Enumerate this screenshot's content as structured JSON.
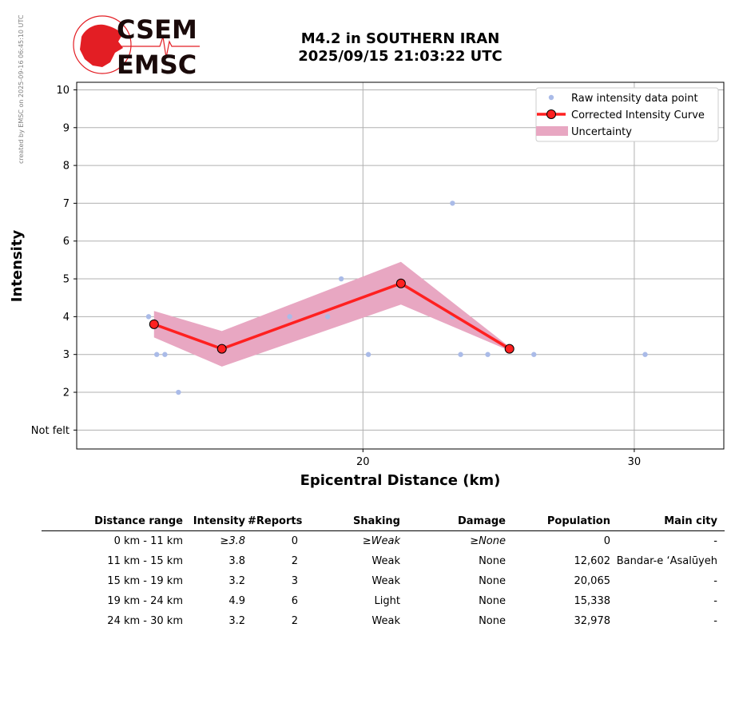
{
  "created_note": "created by EMSC on 2025-09-16 06:45:10 UTC",
  "logo": {
    "line1": "CSEM",
    "line2": "EMSC"
  },
  "title": {
    "line1": "M4.2 in SOUTHERN IRAN",
    "line2": "2025/09/15 21:03:22 UTC"
  },
  "colors": {
    "curve": "#ff2020",
    "marker_edge": "#000000",
    "raw": "#aabbe8",
    "band": "#e8a7c2",
    "logo": "#e31e24"
  },
  "chart_data": {
    "type": "line",
    "xlabel": "Epicentral Distance (km)",
    "ylabel": "Intensity",
    "xlim": [
      9.45,
      33.3
    ],
    "ylim": [
      0.5,
      10.2
    ],
    "x_ticks": [
      20,
      30
    ],
    "y_ticks": [
      {
        "value": 1,
        "label": "Not felt"
      },
      {
        "value": 2,
        "label": "2"
      },
      {
        "value": 3,
        "label": "3"
      },
      {
        "value": 4,
        "label": "4"
      },
      {
        "value": 5,
        "label": "5"
      },
      {
        "value": 6,
        "label": "6"
      },
      {
        "value": 7,
        "label": "7"
      },
      {
        "value": 8,
        "label": "8"
      },
      {
        "value": 9,
        "label": "9"
      },
      {
        "value": 10,
        "label": "10"
      }
    ],
    "grid": true,
    "legend_position": "top-right",
    "legend": [
      "Raw intensity data point",
      "Corrected Intensity Curve",
      "Uncertainty"
    ],
    "raw_points": [
      {
        "x": 12.1,
        "y": 4
      },
      {
        "x": 12.4,
        "y": 3
      },
      {
        "x": 12.7,
        "y": 3
      },
      {
        "x": 13.2,
        "y": 2
      },
      {
        "x": 17.3,
        "y": 4
      },
      {
        "x": 18.7,
        "y": 4
      },
      {
        "x": 19.2,
        "y": 5
      },
      {
        "x": 20.2,
        "y": 3
      },
      {
        "x": 23.3,
        "y": 7
      },
      {
        "x": 23.3,
        "y": 4
      },
      {
        "x": 23.6,
        "y": 3
      },
      {
        "x": 24.6,
        "y": 3
      },
      {
        "x": 26.3,
        "y": 3
      },
      {
        "x": 30.4,
        "y": 3
      }
    ],
    "curve": [
      {
        "x": 12.3,
        "y": 3.8
      },
      {
        "x": 14.8,
        "y": 3.15
      },
      {
        "x": 21.4,
        "y": 4.88
      },
      {
        "x": 25.4,
        "y": 3.15
      }
    ],
    "uncertainty": [
      {
        "x": 12.3,
        "lo": 3.45,
        "hi": 4.15
      },
      {
        "x": 14.8,
        "lo": 2.68,
        "hi": 3.62
      },
      {
        "x": 21.4,
        "lo": 4.32,
        "hi": 5.45
      },
      {
        "x": 25.4,
        "lo": 3.1,
        "hi": 3.2
      }
    ]
  },
  "table": {
    "headers": [
      "Distance range",
      "Intensity",
      "#Reports",
      "Shaking",
      "Damage",
      "Population",
      "Main city"
    ],
    "rows": [
      [
        "0 km -   11 km",
        "≥3.8",
        "0",
        "≥Weak",
        "≥None",
        "0",
        "-"
      ],
      [
        "11 km -   15 km",
        "3.8",
        "2",
        "Weak",
        "None",
        "12,602",
        "Bandar-e ‘Asalūyeh"
      ],
      [
        "15 km -   19 km",
        "3.2",
        "3",
        "Weak",
        "None",
        "20,065",
        "-"
      ],
      [
        "19 km -   24 km",
        "4.9",
        "6",
        "Light",
        "None",
        "15,338",
        "-"
      ],
      [
        "24 km -   30 km",
        "3.2",
        "2",
        "Weak",
        "None",
        "32,978",
        "-"
      ]
    ]
  }
}
